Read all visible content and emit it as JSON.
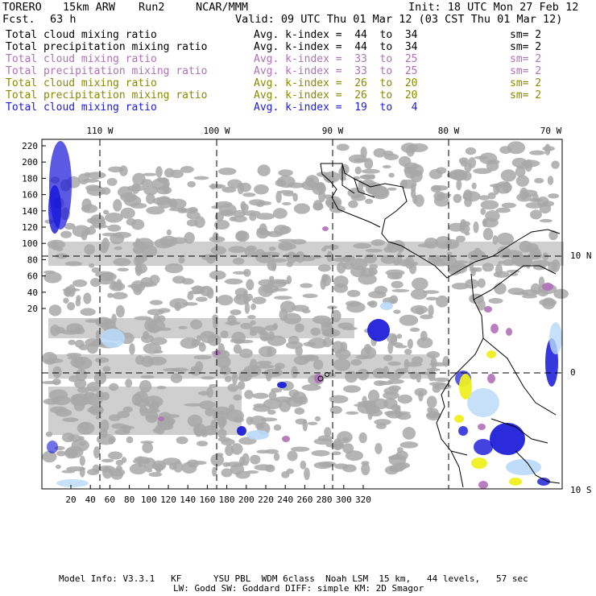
{
  "header": {
    "model": "TORERO",
    "resolution": "15km ARW",
    "run": "Run2",
    "org": "NCAR/MMM",
    "init": "Init: 18 UTC Mon 27 Feb 12",
    "fcst_label": "Fcst.",
    "fcst_value": "63 h",
    "valid": "Valid: 09 UTC Thu 01 Mar 12 (03 CST Thu 01 Mar 12)"
  },
  "legend_rows": [
    {
      "field": "Total cloud mixing ratio",
      "index": "Avg. k-index =  44  to  34",
      "sm": "sm= 2",
      "color": "#000000"
    },
    {
      "field": "Total precipitation mixing ratio",
      "index": "Avg. k-index =  44  to  34",
      "sm": "sm= 2",
      "color": "#000000"
    },
    {
      "field": "Total cloud mixing ratio",
      "index": "Avg. k-index =  33  to  25",
      "sm": "sm= 2",
      "color": "#b070b8"
    },
    {
      "field": "Total precipitation mixing ratio",
      "index": "Avg. k-index =  33  to  25",
      "sm": "sm= 2",
      "color": "#b070b8"
    },
    {
      "field": "Total cloud mixing ratio",
      "index": "Avg. k-index =  26  to  20",
      "sm": "sm= 2",
      "color": "#8a8a00"
    },
    {
      "field": "Total precipitation mixing ratio",
      "index": "Avg. k-index =  26  to  20",
      "sm": "sm= 2",
      "color": "#8a8a00"
    },
    {
      "field": "Total cloud mixing ratio",
      "index": "Avg. k-index =  19  to   4",
      "sm": "",
      "color": "#1a1ae6"
    }
  ],
  "map": {
    "lon_labels": [
      "110 W",
      "100 W",
      "90 W",
      "80 W",
      "70 W"
    ],
    "lat_labels": [
      "10 N",
      "0",
      "10 S"
    ],
    "y_ticks": [
      "220",
      "200",
      "180",
      "160",
      "140",
      "120",
      "100",
      "80",
      "60",
      "40",
      "20"
    ],
    "x_ticks": [
      "20",
      "40",
      "60",
      "80",
      "100",
      "120",
      "140",
      "160",
      "180",
      "200",
      "220",
      "240",
      "260",
      "280",
      "300",
      "320"
    ],
    "colors": {
      "cloud_gray": "#a8a8a8",
      "purple": "#b070b8",
      "yellow": "#f0f020",
      "blue_dark": "#1414d8",
      "blue_light": "#b8d8f8"
    }
  },
  "footer": {
    "line1": "Model Info: V3.3.1   KF      YSU PBL  WDM 6class  Noah LSM  15 km,   44 levels,   57 sec",
    "line2": "LW: Godd SW: Goddard DIFF: simple KM: 2D Smagor"
  }
}
